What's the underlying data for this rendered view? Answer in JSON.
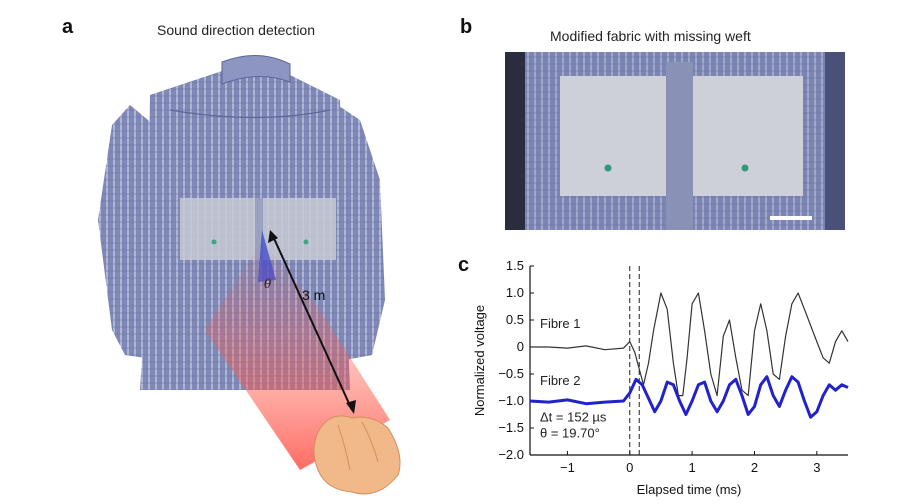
{
  "panel_a": {
    "letter": "a",
    "title": "Sound direction detection",
    "angle_label": "θ",
    "distance_label": "3 m"
  },
  "panel_b": {
    "letter": "b",
    "title": "Modified fabric with missing weft"
  },
  "panel_c": {
    "letter": "c"
  },
  "chart_data": {
    "type": "line",
    "xlabel": "Elapsed time (ms)",
    "ylabel": "Normalized voltage",
    "xlim": [
      -1.6,
      3.5
    ],
    "ylim": [
      -2.0,
      1.5
    ],
    "xticks": [
      -1,
      0,
      1,
      2,
      3
    ],
    "yticks": [
      1.5,
      1.0,
      0.5,
      0,
      -0.5,
      -1.0,
      -1.5,
      -2.0
    ],
    "ytick_labels": [
      "1.5",
      "1.0",
      "0.5",
      "0",
      "−0.5",
      "−1.0",
      "−1.5",
      "−2.0"
    ],
    "xtick_labels": [
      "−1",
      "0",
      "1",
      "2",
      "3"
    ],
    "vlines": [
      0.0,
      0.152
    ],
    "annotation_dt": "Δt = 152 µs",
    "annotation_theta": "θ = 19.70°",
    "series": [
      {
        "name": "Fibre 1",
        "color": "#333333",
        "x": [
          -1.6,
          -1.3,
          -1.0,
          -0.7,
          -0.4,
          -0.1,
          0.0,
          0.08,
          0.15,
          0.22,
          0.3,
          0.38,
          0.5,
          0.6,
          0.7,
          0.78,
          0.85,
          0.92,
          1.0,
          1.1,
          1.2,
          1.3,
          1.4,
          1.5,
          1.6,
          1.7,
          1.8,
          1.9,
          2.0,
          2.1,
          2.2,
          2.3,
          2.4,
          2.5,
          2.6,
          2.7,
          2.8,
          2.9,
          3.0,
          3.1,
          3.2,
          3.3,
          3.4,
          3.5
        ],
        "y": [
          0.0,
          0.0,
          -0.02,
          0.02,
          -0.05,
          -0.02,
          0.1,
          -0.1,
          -0.4,
          -0.7,
          -0.3,
          0.3,
          1.0,
          0.7,
          -0.3,
          -0.9,
          -0.9,
          -0.2,
          0.8,
          1.0,
          0.3,
          -0.5,
          -0.9,
          0.2,
          0.5,
          -0.2,
          -0.8,
          -0.9,
          0.3,
          0.8,
          0.3,
          -0.5,
          -0.6,
          0.2,
          0.8,
          1.0,
          0.7,
          0.4,
          0.1,
          -0.2,
          -0.3,
          0.1,
          0.3,
          0.1
        ]
      },
      {
        "name": "Fibre 2",
        "color": "#2222cc",
        "x": [
          -1.6,
          -1.3,
          -1.0,
          -0.7,
          -0.4,
          -0.1,
          0.0,
          0.1,
          0.2,
          0.3,
          0.4,
          0.5,
          0.6,
          0.7,
          0.8,
          0.9,
          1.0,
          1.1,
          1.2,
          1.3,
          1.4,
          1.5,
          1.6,
          1.7,
          1.8,
          1.9,
          2.0,
          2.1,
          2.2,
          2.3,
          2.4,
          2.5,
          2.6,
          2.7,
          2.8,
          2.9,
          3.0,
          3.1,
          3.2,
          3.3,
          3.4,
          3.5
        ],
        "y": [
          -1.0,
          -1.02,
          -0.98,
          -1.05,
          -1.02,
          -1.0,
          -0.85,
          -0.6,
          -0.7,
          -0.95,
          -1.2,
          -1.0,
          -0.65,
          -0.7,
          -1.0,
          -1.25,
          -1.0,
          -0.7,
          -0.65,
          -1.0,
          -1.2,
          -1.0,
          -0.7,
          -0.6,
          -0.9,
          -1.25,
          -1.1,
          -0.7,
          -0.55,
          -0.9,
          -1.1,
          -0.8,
          -0.55,
          -0.65,
          -1.0,
          -1.3,
          -1.2,
          -0.9,
          -0.7,
          -0.8,
          -0.7,
          -0.75
        ]
      }
    ]
  }
}
